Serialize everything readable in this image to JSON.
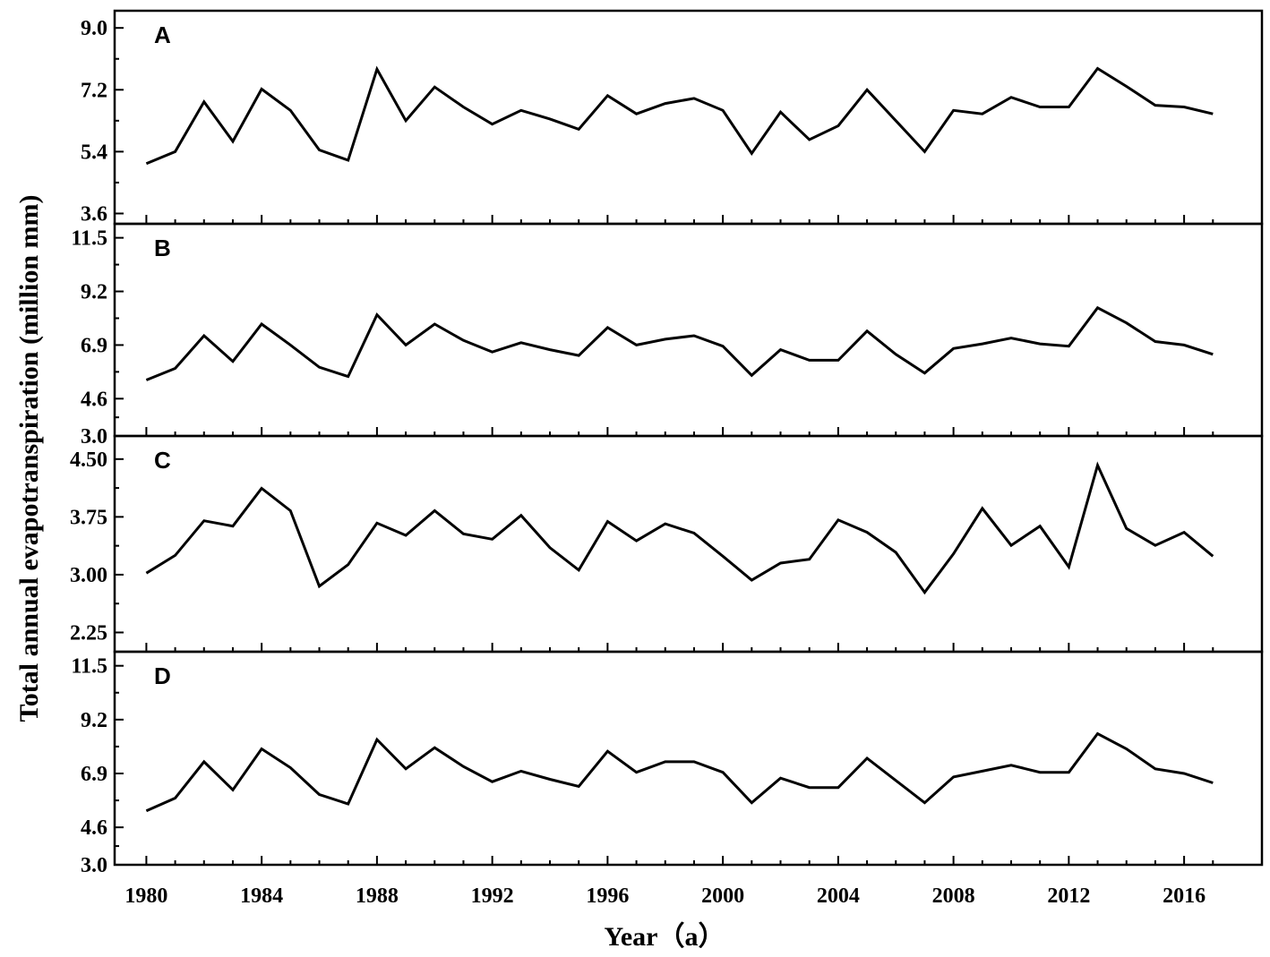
{
  "chart_data": {
    "type": "line",
    "xlabel": "Year（a）",
    "ylabel": "Total annual evapotranspiration (million mm)",
    "x_ticks": [
      1980,
      1984,
      1988,
      1992,
      1996,
      2000,
      2004,
      2008,
      2012,
      2016
    ],
    "x_tick_labels": [
      "1980",
      "1984",
      "1988",
      "1992",
      "1996",
      "2000",
      "2004",
      "2008",
      "2012",
      "2016"
    ],
    "xlim": [
      1978.9,
      2018.7
    ],
    "x": [
      1980,
      1981,
      1982,
      1983,
      1984,
      1985,
      1986,
      1987,
      1988,
      1989,
      1990,
      1991,
      1992,
      1993,
      1994,
      1995,
      1996,
      1997,
      1998,
      1999,
      2000,
      2001,
      2002,
      2003,
      2004,
      2005,
      2006,
      2007,
      2008,
      2009,
      2010,
      2011,
      2012,
      2013,
      2014,
      2015,
      2016,
      2017
    ],
    "grid": false,
    "panels": [
      {
        "label": "A",
        "ylim": [
          3.3,
          9.5
        ],
        "yticks": [
          3.6,
          5.4,
          7.2,
          9.0
        ],
        "ytick_labels": [
          "3.6",
          "5.4",
          "7.2",
          "9.0"
        ],
        "values": [
          5.05,
          5.4,
          6.85,
          5.7,
          7.22,
          6.6,
          5.45,
          5.15,
          7.8,
          6.3,
          7.28,
          6.7,
          6.2,
          6.6,
          6.35,
          6.05,
          7.03,
          6.5,
          6.8,
          6.95,
          6.6,
          5.35,
          6.55,
          5.75,
          6.15,
          7.2,
          6.3,
          5.4,
          6.6,
          6.5,
          6.98,
          6.7,
          6.7,
          7.82,
          7.3,
          6.75,
          6.7,
          6.5
        ]
      },
      {
        "label": "B",
        "ylim": [
          3.0,
          12.1
        ],
        "yticks": [
          3.0,
          4.6,
          6.9,
          9.2,
          11.5
        ],
        "ytick_labels": [
          "3.0",
          "4.6",
          "6.9",
          "9.2",
          "11.5"
        ],
        "values": [
          5.4,
          5.9,
          7.3,
          6.2,
          7.8,
          6.9,
          5.95,
          5.55,
          8.2,
          6.9,
          7.8,
          7.1,
          6.6,
          7.0,
          6.7,
          6.45,
          7.65,
          6.9,
          7.15,
          7.3,
          6.85,
          5.6,
          6.7,
          6.25,
          6.25,
          7.5,
          6.5,
          5.7,
          6.75,
          6.95,
          7.2,
          6.95,
          6.85,
          8.5,
          7.85,
          7.05,
          6.9,
          6.5
        ]
      },
      {
        "label": "C",
        "ylim": [
          2.0,
          4.8
        ],
        "yticks": [
          2.25,
          3.0,
          3.75,
          4.5
        ],
        "ytick_labels": [
          "2.25",
          "3.00",
          "3.75",
          "4.50"
        ],
        "values": [
          3.02,
          3.25,
          3.7,
          3.63,
          4.12,
          3.83,
          2.85,
          3.13,
          3.67,
          3.51,
          3.83,
          3.53,
          3.46,
          3.77,
          3.35,
          3.06,
          3.69,
          3.44,
          3.66,
          3.54,
          3.24,
          2.93,
          3.15,
          3.2,
          3.71,
          3.55,
          3.29,
          2.77,
          3.27,
          3.86,
          3.38,
          3.63,
          3.1,
          4.42,
          3.6,
          3.38,
          3.55,
          3.24
        ]
      },
      {
        "label": "D",
        "ylim": [
          3.0,
          12.1
        ],
        "yticks": [
          3.0,
          4.6,
          6.9,
          9.2,
          11.5
        ],
        "ytick_labels": [
          "3.0",
          "4.6",
          "6.9",
          "9.2",
          "11.5"
        ],
        "values": [
          5.3,
          5.85,
          7.4,
          6.2,
          7.95,
          7.15,
          6.0,
          5.6,
          8.35,
          7.1,
          8.0,
          7.2,
          6.55,
          7.0,
          6.65,
          6.35,
          7.85,
          6.95,
          7.4,
          7.4,
          6.95,
          5.65,
          6.7,
          6.3,
          6.3,
          7.55,
          6.6,
          5.65,
          6.75,
          7.0,
          7.25,
          6.95,
          6.95,
          8.6,
          7.95,
          7.1,
          6.9,
          6.5
        ]
      }
    ]
  }
}
